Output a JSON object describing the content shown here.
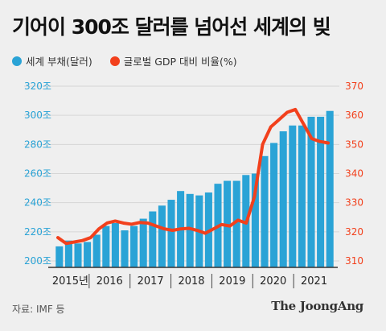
{
  "title": "기어이 300조 달러를 넘어선 세계의 빚",
  "legend": {
    "debt_label": "세계 부채(달러)",
    "ratio_label": "글로벌 GDP 대비 비율(%)"
  },
  "colors": {
    "bar": "#2aa3d6",
    "line": "#f2401c",
    "left_axis": "#2aa3d6",
    "right_axis": "#f2401c"
  },
  "source": "자료: IMF 등",
  "brand": "The JoongAng",
  "chart_data": {
    "type": "bar",
    "left_axis": {
      "ylim": [
        200,
        320
      ],
      "ticks": [
        200,
        220,
        240,
        260,
        280,
        300,
        320
      ],
      "tick_labels": [
        "200조",
        "220조",
        "240조",
        "260조",
        "280조",
        "300조",
        "320조"
      ]
    },
    "right_axis": {
      "ylim": [
        310,
        370
      ],
      "ticks": [
        310,
        320,
        330,
        340,
        350,
        360,
        370
      ],
      "tick_labels": [
        "310",
        "320",
        "330",
        "340",
        "350",
        "360",
        "370"
      ]
    },
    "x_labels": [
      "2015년",
      "2016",
      "2017",
      "2018",
      "2019",
      "2020",
      "2021"
    ],
    "series": [
      {
        "name": "세계 부채(달러)",
        "type": "bar",
        "axis": "left",
        "values": [
          210,
          214,
          212,
          213,
          218,
          224,
          226,
          221,
          224,
          229,
          234,
          238,
          242,
          248,
          246,
          245,
          247,
          253,
          255,
          255,
          259,
          260,
          272,
          281,
          289,
          293,
          293,
          299,
          299,
          303
        ]
      },
      {
        "name": "글로벌 GDP 대비 비율(%)",
        "type": "line",
        "axis": "right",
        "values": [
          318,
          316,
          316.5,
          317,
          318,
          321,
          323,
          323.7,
          323,
          322.6,
          323.2,
          323,
          322,
          321,
          320.5,
          321,
          321.2,
          320.5,
          319.5,
          321,
          322.5,
          322,
          324,
          323,
          332,
          350,
          356,
          358.5,
          361,
          362,
          357,
          352,
          351,
          350.5
        ]
      }
    ]
  }
}
